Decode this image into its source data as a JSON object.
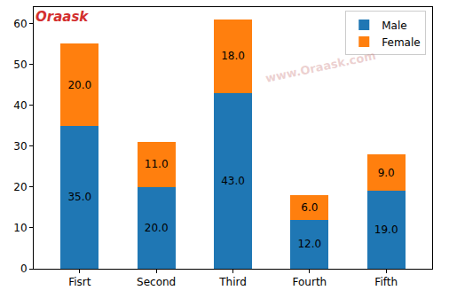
{
  "chart_data": {
    "type": "bar",
    "stacked": true,
    "categories": [
      "Fisrt",
      "Second",
      "Third",
      "Fourth",
      "Fifth"
    ],
    "series": [
      {
        "name": "Male",
        "color": "#1f77b4",
        "values": [
          35,
          20,
          43,
          12,
          19
        ],
        "value_labels": [
          "35.0",
          "20.0",
          "43.0",
          "12.0",
          "19.0"
        ]
      },
      {
        "name": "Female",
        "color": "#ff7f0e",
        "values": [
          20,
          11,
          18,
          6,
          9
        ],
        "value_labels": [
          "20.0",
          "11.0",
          "18.0",
          "6.0",
          "9.0"
        ]
      }
    ],
    "ylim": [
      0,
      64
    ],
    "yticks": [
      0,
      10,
      20,
      30,
      40,
      50,
      60
    ],
    "grid": false,
    "legend": "upper right",
    "data_labels": true,
    "annotations": [
      "Oraask",
      "www.Oraask.com"
    ]
  }
}
